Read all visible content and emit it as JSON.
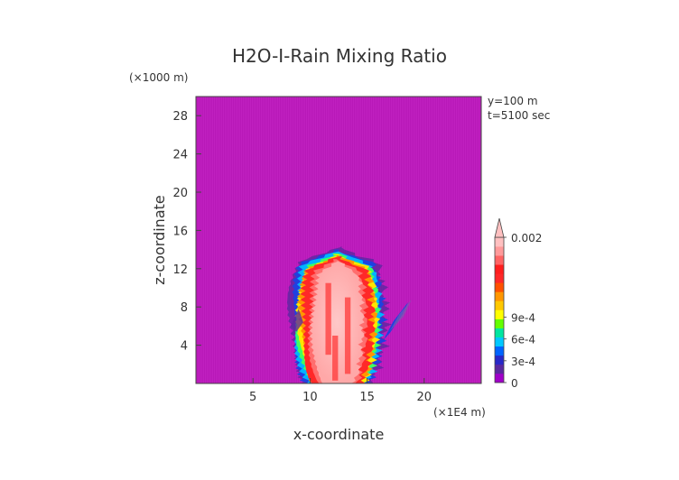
{
  "chart_data": {
    "type": "heatmap",
    "title": "H2O-I-Rain Mixing Ratio",
    "xlabel": "x-coordinate",
    "ylabel": "z-coordinate",
    "x_unit": "(×1E4 m)",
    "y_unit": "(×1000 m)",
    "annotations": [
      "y=100 m",
      "t=5100 sec"
    ],
    "xlim": [
      0,
      25
    ],
    "ylim": [
      0,
      30
    ],
    "x_ticks": [
      5,
      10,
      15,
      20
    ],
    "y_ticks": [
      4,
      8,
      12,
      16,
      20,
      24,
      28
    ],
    "colorbar": {
      "labels": [
        "0.002",
        "9e-4",
        "6e-4",
        "3e-4",
        "0"
      ],
      "label_values": [
        0.002,
        0.0009,
        0.0006,
        0.0003,
        0
      ],
      "max": 0.002,
      "colors": [
        "#a000c8",
        "#5a28a0",
        "#2828c8",
        "#0064ff",
        "#00c8ff",
        "#00e6a0",
        "#64ff00",
        "#ffff00",
        "#ffc800",
        "#ff9600",
        "#ff5000",
        "#ff2828",
        "#ff1e1e",
        "#ff6464",
        "#ff9a9a",
        "#ffc0c0"
      ],
      "background_color": "#c020c0"
    },
    "cloud_region": {
      "x_range": [
        9,
        16
      ],
      "z_range": [
        0,
        14
      ],
      "peak_value": 0.002
    }
  }
}
